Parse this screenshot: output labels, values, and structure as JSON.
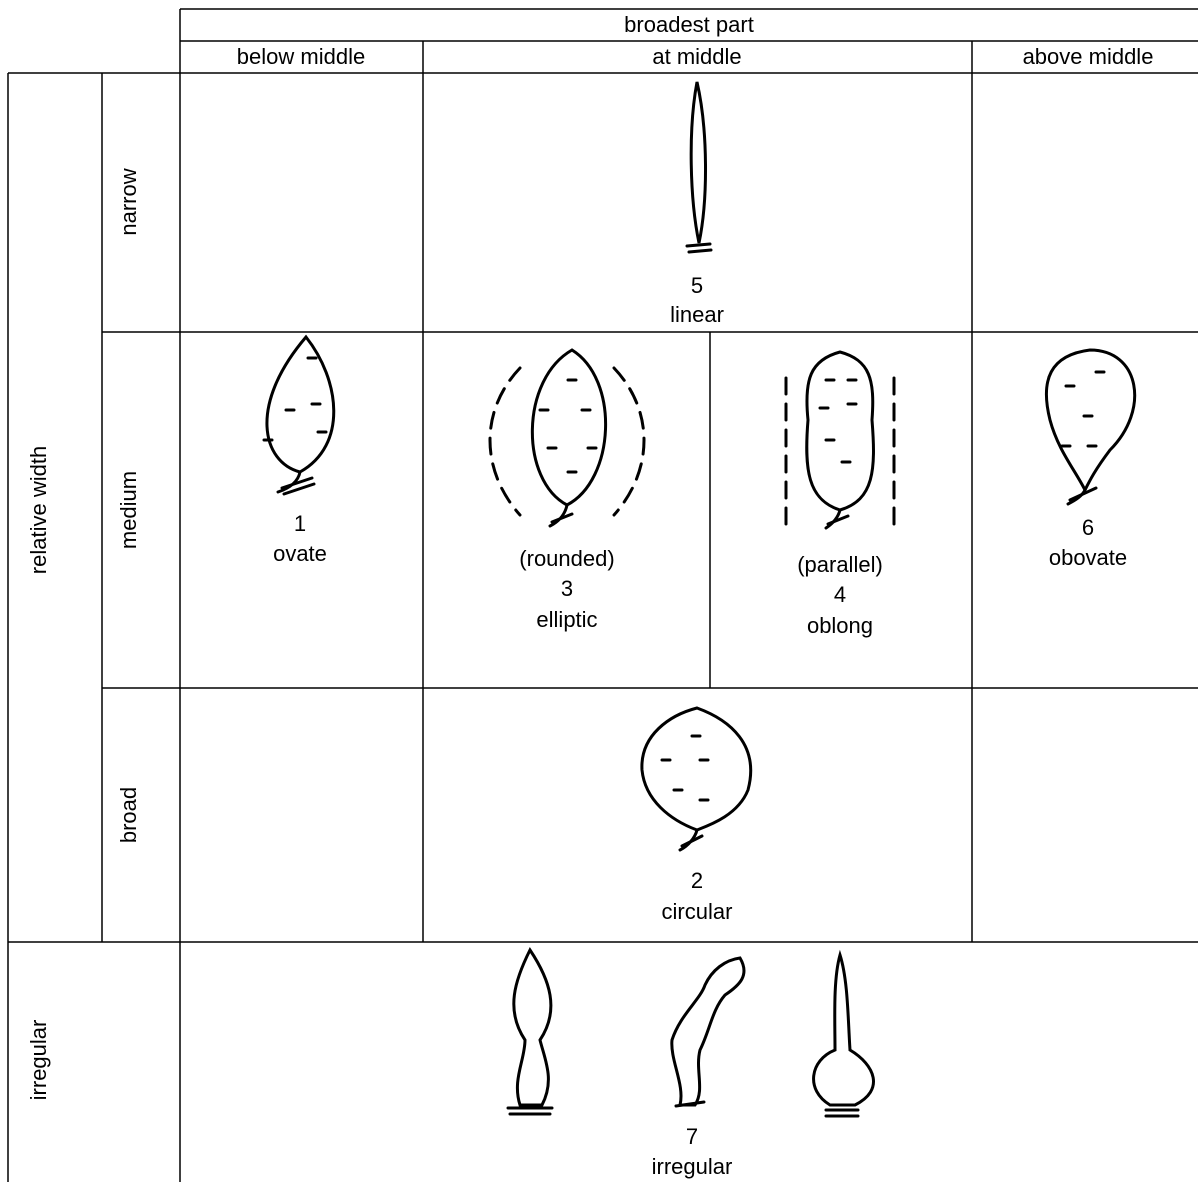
{
  "header": {
    "title": "broadest part",
    "columns": [
      "below middle",
      "at middle",
      "above middle"
    ]
  },
  "rows": {
    "group": "relative width",
    "labels": [
      "narrow",
      "medium",
      "broad"
    ],
    "irregular": "irregular"
  },
  "shapes": [
    {
      "number": 5,
      "name": "linear"
    },
    {
      "number": 1,
      "name": "ovate"
    },
    {
      "qualifier": "(rounded)",
      "number": 3,
      "name": "elliptic"
    },
    {
      "qualifier": "(parallel)",
      "number": 4,
      "name": "oblong"
    },
    {
      "number": 6,
      "name": "obovate"
    },
    {
      "number": 2,
      "name": "circular"
    },
    {
      "number": 7,
      "name": "irregular"
    }
  ]
}
